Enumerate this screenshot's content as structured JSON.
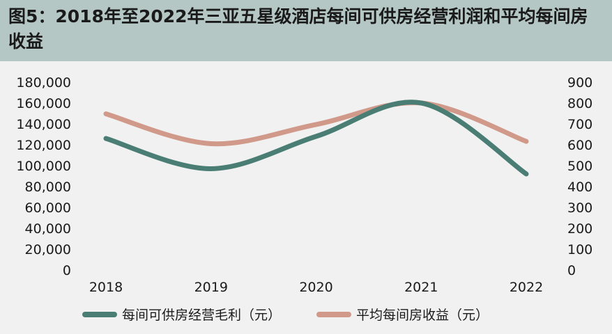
{
  "title": "图5：2018年至2022年三亚五星级酒店每间可供房经营利润和平均每间房收益",
  "colors": {
    "title_bg": "#b5c7c5",
    "background": "#f0f1f0",
    "series_profit": "#4a7d74",
    "series_revpar": "#d1998a"
  },
  "chart_data": {
    "type": "line",
    "title": "图5：2018年至2022年三亚五星级酒店每间可供房经营利润和平均每间房收益",
    "x": [
      "2018",
      "2019",
      "2020",
      "2021",
      "2022"
    ],
    "series": [
      {
        "name": "每间可供房经营毛利（元）",
        "axis": "left",
        "values": [
          126000,
          97000,
          128000,
          160000,
          92000
        ]
      },
      {
        "name": "平均每间房收益（元）",
        "axis": "right",
        "values": [
          748,
          605,
          697,
          800,
          616
        ]
      }
    ],
    "y_left": {
      "range": [
        0,
        180000
      ],
      "ticks": [
        "180,000",
        "160,000",
        "140,000",
        "120,000",
        "100,000",
        "80,000",
        "60,000",
        "40,000",
        "20,000",
        "0"
      ]
    },
    "y_right": {
      "range": [
        0,
        900
      ],
      "ticks": [
        "900",
        "800",
        "700",
        "600",
        "500",
        "400",
        "300",
        "200",
        "100",
        "0"
      ]
    },
    "grid": false,
    "legend_position": "bottom",
    "smooth": true
  }
}
